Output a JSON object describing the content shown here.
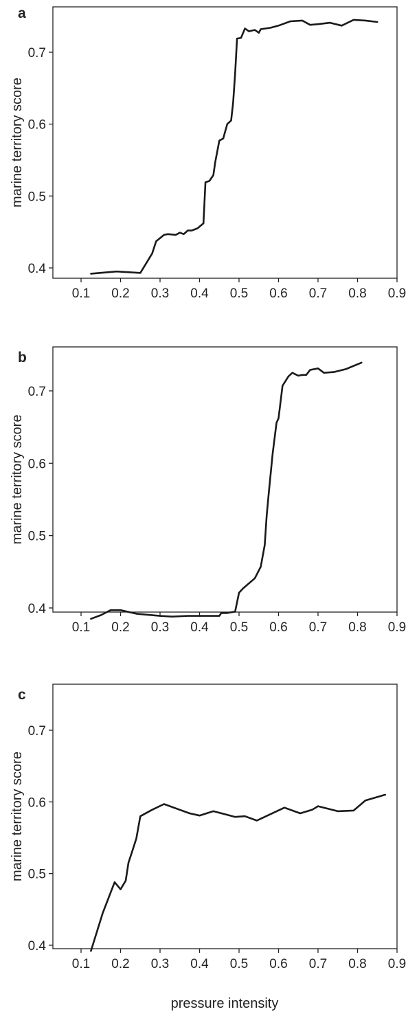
{
  "figure": {
    "xlabel": "pressure intensity"
  },
  "chart_data": [
    {
      "panel": "a",
      "type": "line",
      "ylabel": "marine territory score",
      "xlim": [
        0.1,
        0.9
      ],
      "ylim": [
        0.38,
        0.765
      ],
      "xticks": [
        0.1,
        0.2,
        0.3,
        0.4,
        0.5,
        0.6,
        0.7,
        0.8,
        0.9
      ],
      "yticks": [
        0.4,
        0.5,
        0.6,
        0.7
      ],
      "x": [
        0.125,
        0.19,
        0.25,
        0.28,
        0.29,
        0.31,
        0.32,
        0.34,
        0.35,
        0.36,
        0.37,
        0.38,
        0.395,
        0.41,
        0.415,
        0.425,
        0.435,
        0.44,
        0.45,
        0.46,
        0.47,
        0.48,
        0.485,
        0.49,
        0.495,
        0.505,
        0.515,
        0.525,
        0.532,
        0.54,
        0.55,
        0.555,
        0.58,
        0.6,
        0.63,
        0.66,
        0.68,
        0.7,
        0.73,
        0.76,
        0.79,
        0.82,
        0.85
      ],
      "y": [
        0.392,
        0.395,
        0.393,
        0.42,
        0.437,
        0.446,
        0.447,
        0.446,
        0.449,
        0.447,
        0.452,
        0.452,
        0.455,
        0.462,
        0.519,
        0.521,
        0.529,
        0.548,
        0.577,
        0.58,
        0.6,
        0.605,
        0.63,
        0.67,
        0.719,
        0.72,
        0.733,
        0.729,
        0.73,
        0.731,
        0.727,
        0.732,
        0.734,
        0.737,
        0.743,
        0.744,
        0.738,
        0.739,
        0.741,
        0.737,
        0.745,
        0.744,
        0.742
      ]
    },
    {
      "panel": "b",
      "type": "line",
      "ylabel": "marine territory score",
      "xlim": [
        0.1,
        0.9
      ],
      "ylim": [
        0.38,
        0.765
      ],
      "xticks": [
        0.1,
        0.2,
        0.3,
        0.4,
        0.5,
        0.6,
        0.7,
        0.8,
        0.9
      ],
      "yticks": [
        0.4,
        0.5,
        0.6,
        0.7
      ],
      "x": [
        0.125,
        0.15,
        0.175,
        0.2,
        0.24,
        0.3,
        0.33,
        0.37,
        0.42,
        0.45,
        0.455,
        0.47,
        0.49,
        0.5,
        0.51,
        0.54,
        0.555,
        0.565,
        0.57,
        0.575,
        0.585,
        0.59,
        0.595,
        0.6,
        0.61,
        0.625,
        0.635,
        0.65,
        0.66,
        0.67,
        0.68,
        0.7,
        0.715,
        0.74,
        0.77,
        0.81
      ],
      "y": [
        0.385,
        0.39,
        0.397,
        0.397,
        0.392,
        0.389,
        0.388,
        0.389,
        0.389,
        0.389,
        0.393,
        0.393,
        0.395,
        0.421,
        0.427,
        0.441,
        0.457,
        0.487,
        0.527,
        0.557,
        0.613,
        0.635,
        0.656,
        0.662,
        0.707,
        0.72,
        0.725,
        0.721,
        0.722,
        0.722,
        0.729,
        0.731,
        0.725,
        0.726,
        0.73,
        0.739
      ]
    },
    {
      "panel": "c",
      "type": "line",
      "ylabel": "marine territory score",
      "xlim": [
        0.1,
        0.9
      ],
      "ylim": [
        0.38,
        0.765
      ],
      "xticks": [
        0.1,
        0.2,
        0.3,
        0.4,
        0.5,
        0.6,
        0.7,
        0.8,
        0.9
      ],
      "yticks": [
        0.4,
        0.5,
        0.6,
        0.7
      ],
      "x": [
        0.125,
        0.155,
        0.185,
        0.2,
        0.213,
        0.22,
        0.23,
        0.24,
        0.25,
        0.28,
        0.31,
        0.345,
        0.375,
        0.4,
        0.435,
        0.47,
        0.49,
        0.515,
        0.545,
        0.58,
        0.615,
        0.655,
        0.685,
        0.7,
        0.75,
        0.79,
        0.82,
        0.87
      ],
      "y": [
        0.392,
        0.445,
        0.488,
        0.478,
        0.49,
        0.515,
        0.532,
        0.549,
        0.58,
        0.589,
        0.597,
        0.59,
        0.584,
        0.581,
        0.587,
        0.582,
        0.579,
        0.58,
        0.574,
        0.583,
        0.592,
        0.584,
        0.589,
        0.594,
        0.587,
        0.588,
        0.602,
        0.61
      ]
    }
  ]
}
